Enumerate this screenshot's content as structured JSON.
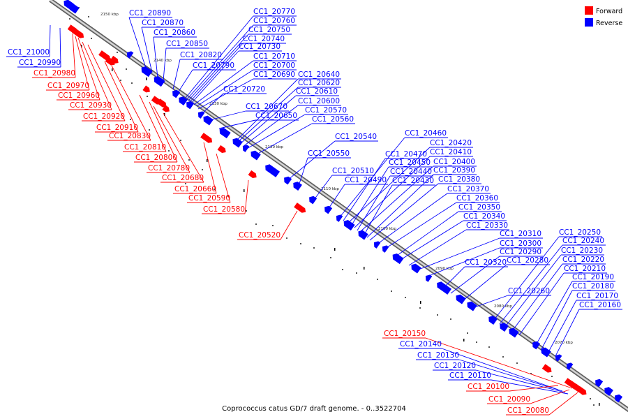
{
  "caption": "Coprococcus catus GD/7 draft genome. - 0..3522704",
  "legend": {
    "forward": {
      "label": "Forward",
      "color": "#ff0000"
    },
    "reverse": {
      "label": "Reverse",
      "color": "#0000ff"
    }
  },
  "colors": {
    "forward": "#ff0000",
    "reverse": "#0000ff",
    "axis": "#8a8a8a"
  },
  "ticks": [
    "2150 kbp",
    "2140 kbp",
    "2130 kbp",
    "2120 kbp",
    "2110 kbp",
    "2100 kbp",
    "2090 kbp",
    "2080 kbp",
    "2070 kbp"
  ],
  "labels": {
    "reverse_upper": [
      "CC1_20890",
      "CC1_20870",
      "CC1_20860",
      "CC1_20850",
      "CC1_20820",
      "CC1_20790",
      "CC1_20770",
      "CC1_20760",
      "CC1_20750",
      "CC1_20740",
      "CC1_20730",
      "CC1_20710",
      "CC1_20700",
      "CC1_20690",
      "CC1_20720",
      "CC1_20640",
      "CC1_20620",
      "CC1_20610",
      "CC1_20600",
      "CC1_20670",
      "CC1_20570",
      "CC1_20650",
      "CC1_20560",
      "CC1_20540",
      "CC1_20550",
      "CC1_20510",
      "CC1_20490",
      "CC1_20460",
      "CC1_20470",
      "CC1_20420",
      "CC1_20450",
      "CC1_20410",
      "CC1_20440",
      "CC1_20400",
      "CC1_20430",
      "CC1_20390",
      "CC1_20380",
      "CC1_20370",
      "CC1_20360",
      "CC1_20350",
      "CC1_20340",
      "CC1_20330",
      "CC1_20310",
      "CC1_20300",
      "CC1_20320",
      "CC1_20290",
      "CC1_20280",
      "CC1_20260",
      "CC1_20250",
      "CC1_20240",
      "CC1_20230",
      "CC1_20220",
      "CC1_20210",
      "CC1_20190",
      "CC1_20180",
      "CC1_20170",
      "CC1_20160"
    ],
    "reverse_lower": [
      "CC1_21000",
      "CC1_20990",
      "CC1_20140",
      "CC1_20130",
      "CC1_20120",
      "CC1_20110"
    ],
    "forward": [
      "CC1_20980",
      "CC1_20970",
      "CC1_20960",
      "CC1_20930",
      "CC1_20920",
      "CC1_20910",
      "CC1_20830",
      "CC1_20810",
      "CC1_20800",
      "CC1_20780",
      "CC1_20680",
      "CC1_20660",
      "CC1_20590",
      "CC1_20580",
      "CC1_20520",
      "CC1_20150",
      "CC1_20100",
      "CC1_20090",
      "CC1_20080"
    ]
  }
}
